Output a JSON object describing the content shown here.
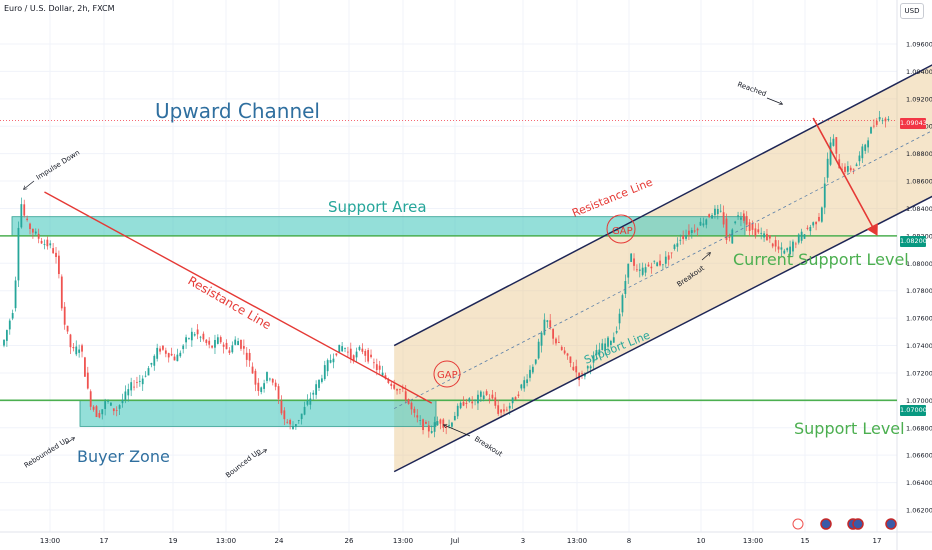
{
  "header": {
    "symbol_title": "Euro / U.S. Dollar, 2h, FXCM",
    "currency_button": "USD"
  },
  "price_tags": {
    "current": "1.09043",
    "level_high": "1.08200",
    "level_low": "1.07000"
  },
  "annotations": {
    "upward_channel": "Upward Channel",
    "support_area": "Support Area",
    "resistance_line_main": "Resistance Line",
    "resistance_line_channel": "Resistance Line",
    "support_line": "Support Line",
    "current_support_level": "Current Support Level",
    "support_level": "Support Level",
    "buyer_zone": "Buyer Zone",
    "impulse_down": "Impulse Down",
    "rebounded_up": "Rebounded Up",
    "bounced_up": "Bounced Up",
    "breakout_1": "Breakout",
    "breakout_2": "Breakout",
    "reached": "Reached",
    "gap_1": "GAP",
    "gap_2": "GAP"
  },
  "colors": {
    "bull": "#26a69a",
    "bear": "#ef5350",
    "support_green": "#4caf50",
    "zone_teal": "#4dc9c0",
    "channel_fill": "#e8c68a",
    "channel_line": "#1e2656",
    "title_blue": "#2f6f9f",
    "annotation_red": "#e53935",
    "price_red": "#f23645",
    "price_green": "#089981"
  },
  "bottom_icons": [
    "flash-icon",
    "us-flag-icon",
    "us-flag-icon",
    "us-flag-icon",
    "us-flag-icon"
  ],
  "chart_data": {
    "type": "candlestick",
    "title": "Euro / U.S. Dollar, 2h, FXCM",
    "ylim": [
      1.0612,
      1.099
    ],
    "y_ticks": [
      "1.09600",
      "1.09400",
      "1.09200",
      "1.09000",
      "1.08800",
      "1.08600",
      "1.08400",
      "1.08200",
      "1.08000",
      "1.07800",
      "1.07600",
      "1.07400",
      "1.07200",
      "1.07000",
      "1.06800",
      "1.06600",
      "1.06400",
      "1.06200"
    ],
    "x_ticks": [
      "13:00",
      "17",
      "19",
      "13:00",
      "24",
      "26",
      "13:00",
      "Jul",
      "3",
      "13:00",
      "8",
      "10",
      "13:00",
      "15",
      "17"
    ],
    "current_price": 1.09043,
    "horizontal_levels": [
      1.082,
      1.07
    ],
    "support_area": [
      1.082,
      1.0834
    ],
    "buyer_zone": [
      1.0681,
      1.07
    ],
    "resistance_line": [
      {
        "t": 14,
        "p": 1.0852
      },
      {
        "t": 148,
        "p": 1.0698
      }
    ],
    "channel_upper": [
      {
        "t": 135,
        "p": 1.074
      },
      {
        "t": 326,
        "p": 1.095
      }
    ],
    "channel_lower": [
      {
        "t": 135,
        "p": 1.0648
      },
      {
        "t": 326,
        "p": 1.0854
      }
    ],
    "projection_arrow": [
      {
        "t": 280,
        "p": 1.0906
      },
      {
        "t": 302,
        "p": 1.0821
      }
    ],
    "price_path": [
      [
        0,
        1.074
      ],
      [
        4,
        1.077
      ],
      [
        6,
        1.0848
      ],
      [
        8,
        1.083
      ],
      [
        11,
        1.0822
      ],
      [
        14,
        1.0815
      ],
      [
        17,
        1.0812
      ],
      [
        19,
        1.08
      ],
      [
        21,
        1.076
      ],
      [
        24,
        1.0735
      ],
      [
        27,
        1.074
      ],
      [
        30,
        1.07
      ],
      [
        33,
        1.0688
      ],
      [
        36,
        1.07
      ],
      [
        39,
        1.0692
      ],
      [
        42,
        1.0702
      ],
      [
        45,
        1.0712
      ],
      [
        48,
        1.0715
      ],
      [
        51,
        1.0725
      ],
      [
        54,
        1.0738
      ],
      [
        57,
        1.0735
      ],
      [
        60,
        1.073
      ],
      [
        63,
        1.0742
      ],
      [
        66,
        1.075
      ],
      [
        69,
        1.0745
      ],
      [
        72,
        1.0738
      ],
      [
        75,
        1.0745
      ],
      [
        78,
        1.0735
      ],
      [
        81,
        1.0745
      ],
      [
        84,
        1.0735
      ],
      [
        86,
        1.0725
      ],
      [
        88,
        1.0708
      ],
      [
        90,
        1.0712
      ],
      [
        92,
        1.072
      ],
      [
        94,
        1.0712
      ],
      [
        97,
        1.0688
      ],
      [
        100,
        1.068
      ],
      [
        103,
        1.0688
      ],
      [
        106,
        1.07
      ],
      [
        109,
        1.0712
      ],
      [
        112,
        1.0725
      ],
      [
        115,
        1.0735
      ],
      [
        118,
        1.074
      ],
      [
        121,
        1.073
      ],
      [
        124,
        1.0738
      ],
      [
        127,
        1.073
      ],
      [
        130,
        1.0722
      ],
      [
        133,
        1.0715
      ],
      [
        136,
        1.071
      ],
      [
        139,
        1.0705
      ],
      [
        142,
        1.069
      ],
      [
        145,
        1.0682
      ],
      [
        148,
        1.0678
      ],
      [
        151,
        1.0686
      ],
      [
        154,
        1.068
      ],
      [
        157,
        1.0692
      ],
      [
        160,
        1.07
      ],
      [
        163,
        1.0698
      ],
      [
        166,
        1.0705
      ],
      [
        169,
        1.0702
      ],
      [
        172,
        1.069
      ],
      [
        175,
        1.0695
      ],
      [
        178,
        1.0704
      ],
      [
        181,
        1.0716
      ],
      [
        184,
        1.0728
      ],
      [
        186,
        1.0744
      ],
      [
        188,
        1.076
      ],
      [
        191,
        1.0744
      ],
      [
        194,
        1.0735
      ],
      [
        197,
        1.0725
      ],
      [
        200,
        1.0716
      ],
      [
        203,
        1.0726
      ],
      [
        206,
        1.0736
      ],
      [
        209,
        1.0742
      ],
      [
        212,
        1.0748
      ],
      [
        215,
        1.078
      ],
      [
        217,
        1.081
      ],
      [
        219,
        1.0792
      ],
      [
        222,
        1.0796
      ],
      [
        225,
        1.08
      ],
      [
        228,
        1.08
      ],
      [
        231,
        1.0806
      ],
      [
        234,
        1.0818
      ],
      [
        237,
        1.0822
      ],
      [
        240,
        1.0826
      ],
      [
        243,
        1.0832
      ],
      [
        246,
        1.0838
      ],
      [
        249,
        1.0836
      ],
      [
        251,
        1.0812
      ],
      [
        253,
        1.0832
      ],
      [
        256,
        1.0836
      ],
      [
        259,
        1.0824
      ],
      [
        262,
        1.0822
      ],
      [
        265,
        1.0818
      ],
      [
        268,
        1.081
      ],
      [
        271,
        1.0808
      ],
      [
        274,
        1.0815
      ],
      [
        277,
        1.0822
      ],
      [
        280,
        1.0828
      ],
      [
        283,
        1.0834
      ],
      [
        285,
        1.0868
      ],
      [
        287,
        1.0895
      ],
      [
        289,
        1.0872
      ],
      [
        292,
        1.0868
      ],
      [
        295,
        1.087
      ],
      [
        298,
        1.0885
      ],
      [
        301,
        1.09
      ],
      [
        304,
        1.0908
      ],
      [
        306,
        1.0904
      ]
    ]
  }
}
